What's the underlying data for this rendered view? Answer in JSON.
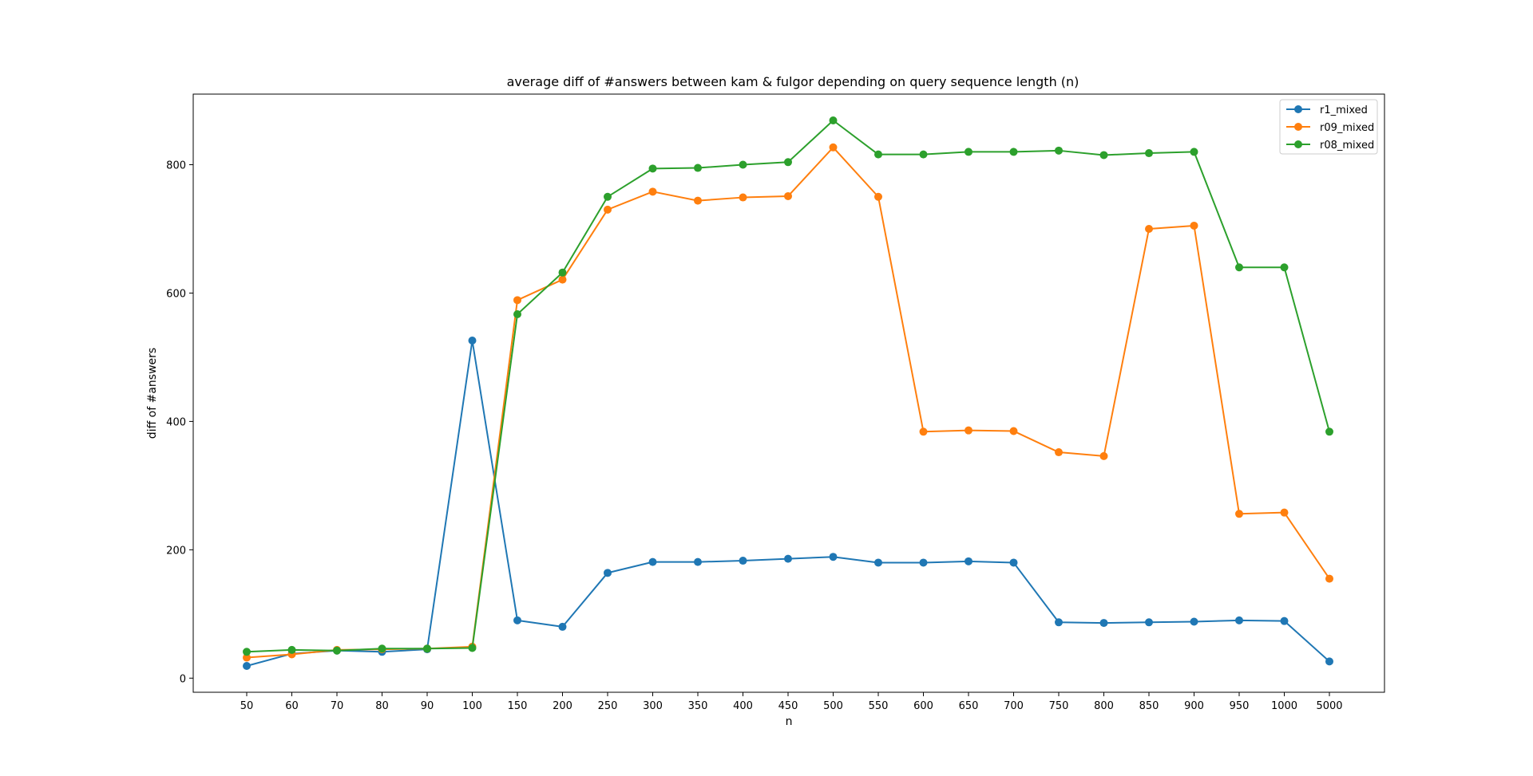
{
  "chart_data": {
    "type": "line",
    "title": "average diff of #answers between kam & fulgor depending on query sequence length (n)",
    "xlabel": "n",
    "ylabel": "diff of #answers",
    "categories": [
      "50",
      "60",
      "70",
      "80",
      "90",
      "100",
      "150",
      "200",
      "250",
      "300",
      "350",
      "400",
      "450",
      "500",
      "550",
      "600",
      "650",
      "700",
      "750",
      "800",
      "850",
      "900",
      "950",
      "1000",
      "5000"
    ],
    "ylim": [
      -22,
      910
    ],
    "yticks": [
      0,
      200,
      400,
      600,
      800
    ],
    "grid": false,
    "legend_position": "top-right",
    "markers": "circle",
    "series": [
      {
        "name": "r1_mixed",
        "color": "#1f77b4",
        "values": [
          19,
          38,
          43,
          41,
          45,
          526,
          90,
          80,
          164,
          181,
          181,
          183,
          186,
          189,
          180,
          180,
          182,
          180,
          87,
          86,
          87,
          88,
          90,
          89,
          26
        ]
      },
      {
        "name": "r09_mixed",
        "color": "#ff7f0e",
        "values": [
          32,
          37,
          44,
          45,
          46,
          49,
          589,
          621,
          730,
          758,
          744,
          749,
          751,
          827,
          750,
          384,
          386,
          385,
          352,
          346,
          700,
          705,
          256,
          258,
          155
        ]
      },
      {
        "name": "r08_mixed",
        "color": "#2ca02c",
        "values": [
          41,
          44,
          43,
          46,
          46,
          47,
          567,
          632,
          750,
          794,
          795,
          800,
          804,
          869,
          816,
          816,
          820,
          820,
          822,
          815,
          818,
          820,
          640,
          640,
          384
        ]
      }
    ]
  }
}
